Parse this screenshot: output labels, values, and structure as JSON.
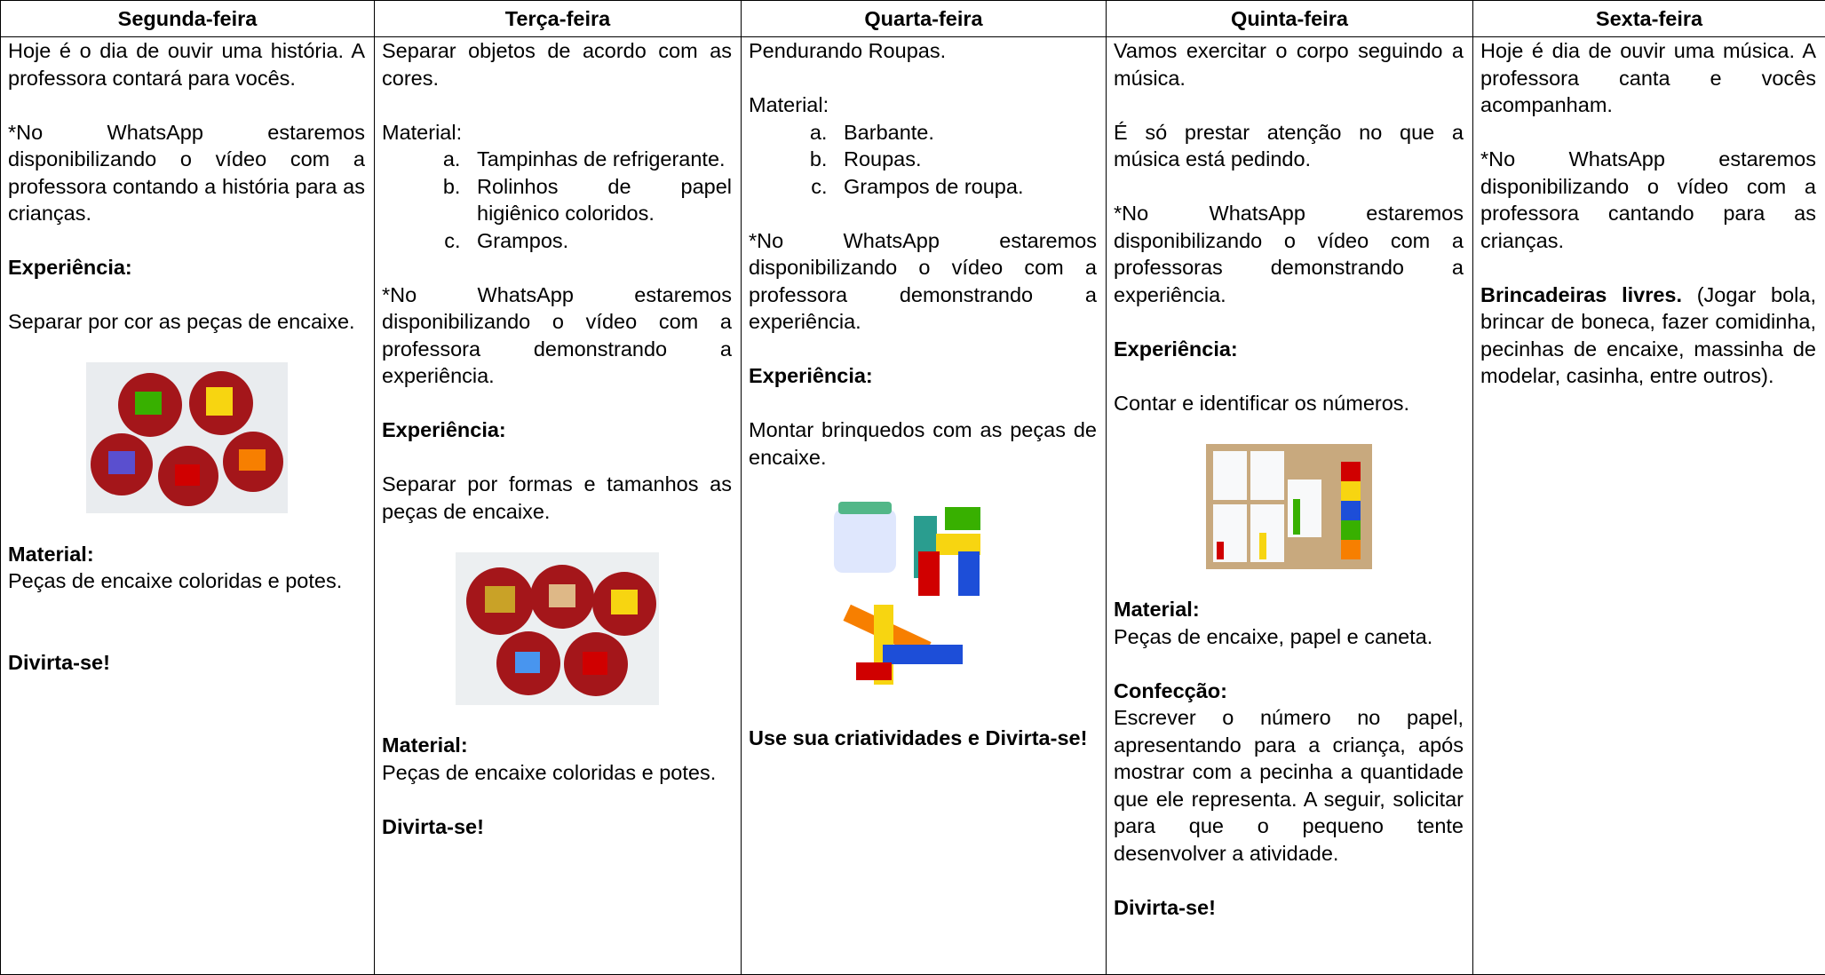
{
  "table": {
    "headers": [
      "Segunda-feira",
      "Terça-feira",
      "Quarta-feira",
      "Quinta-feira",
      "Sexta-feira"
    ],
    "columns": [
      {
        "intro": "Hoje é o dia de ouvir uma história. A professora contará para vocês.",
        "note": "*No WhatsApp estaremos disponibilizando o vídeo com a professora contando a história para as crianças.",
        "experience_title": "Experiência:",
        "experience": "Separar por cor as peças de encaixe.",
        "material_title": "Material:",
        "material": "Peças de encaixe coloridas e potes.",
        "closing": "Divirta-se!"
      },
      {
        "intro": "Separar objetos de acordo com as cores.",
        "material_label": "Material:",
        "material_items": [
          "Tampinhas de refrigerante.",
          "Rolinhos de papel higiênico coloridos.",
          "Grampos."
        ],
        "note": "*No WhatsApp estaremos disponibilizando o vídeo com a professora demonstrando a experiência.",
        "experience_title": "Experiência:",
        "experience": "Separar por formas e tamanhos as peças de encaixe.",
        "material_title": "Material:",
        "material": "Peças de encaixe coloridas e potes.",
        "closing": "Divirta-se!"
      },
      {
        "intro": "Pendurando Roupas.",
        "material_label": "Material:",
        "material_items": [
          "Barbante.",
          "Roupas.",
          "Grampos de roupa."
        ],
        "note": "*No WhatsApp estaremos disponibilizando o vídeo com a professora demonstrando a experiência.",
        "experience_title": "Experiência:",
        "experience": "Montar brinquedos com as peças de encaixe.",
        "closing": "Use sua criatividades e Divirta-se!"
      },
      {
        "intro": "Vamos exercitar o corpo seguindo a música.",
        "intro2": "É só prestar atenção no que a música está pedindo.",
        "note": "*No WhatsApp estaremos disponibilizando o vídeo com a professoras demonstrando a experiência.",
        "experience_title": "Experiência:",
        "experience": "Contar e identificar os números.",
        "material_title": "Material:",
        "material": "Peças de encaixe, papel e caneta.",
        "making_title": "Confecção:",
        "making": "Escrever o número no papel, apresentando para a criança, após mostrar com a pecinha a quantidade que ele representa. A seguir, solicitar para que o pequeno tente desenvolver a atividade.",
        "closing": "Divirta-se!"
      },
      {
        "intro": "Hoje é dia de ouvir uma música. A professora canta e vocês acompanham.",
        "note": "*No WhatsApp estaremos disponibilizando o vídeo com a professora cantando para as crianças.",
        "free_title": "Brincadeiras livres.",
        "free": "(Jogar bola, brincar de boneca, fazer comidinha, pecinhas de encaixe, massinha de modelar, casinha, entre outros)."
      }
    ]
  }
}
